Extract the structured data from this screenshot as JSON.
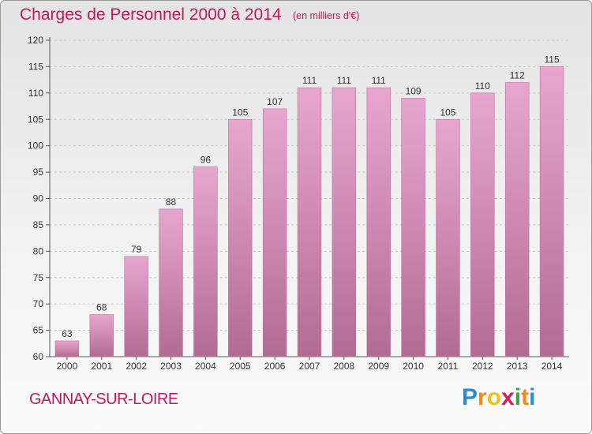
{
  "title": "Charges de Personnel 2000 à 2014",
  "subtitle": "(en milliers d'€)",
  "commune": "GANNAY-SUR-LOIRE",
  "logo": {
    "letters": [
      "P",
      "r",
      "o",
      "x",
      "i",
      "t",
      "i"
    ],
    "colors": [
      "#2e8bd6",
      "#f08a1c",
      "#e8c21a",
      "#d0205a",
      "#3fa14a",
      "#f08a1c",
      "#2e8bd6"
    ]
  },
  "colors": {
    "bar_top": "#e8a6cf",
    "bar_bottom": "#b26c93",
    "title": "#c2185b"
  },
  "chart_data": {
    "type": "bar",
    "categories": [
      "2000",
      "2001",
      "2002",
      "2003",
      "2004",
      "2005",
      "2006",
      "2007",
      "2008",
      "2009",
      "2010",
      "2011",
      "2012",
      "2013",
      "2014"
    ],
    "values": [
      63,
      68,
      79,
      88,
      96,
      105,
      107,
      111,
      111,
      111,
      109,
      105,
      110,
      112,
      115
    ],
    "title": "Charges de Personnel 2000 à 2014",
    "subtitle": "(en milliers d'€)",
    "xlabel": "",
    "ylabel": "",
    "ylim": [
      60,
      120
    ],
    "yticks": [
      60,
      65,
      70,
      75,
      80,
      85,
      90,
      95,
      100,
      105,
      110,
      115,
      120
    ],
    "grid": true
  }
}
